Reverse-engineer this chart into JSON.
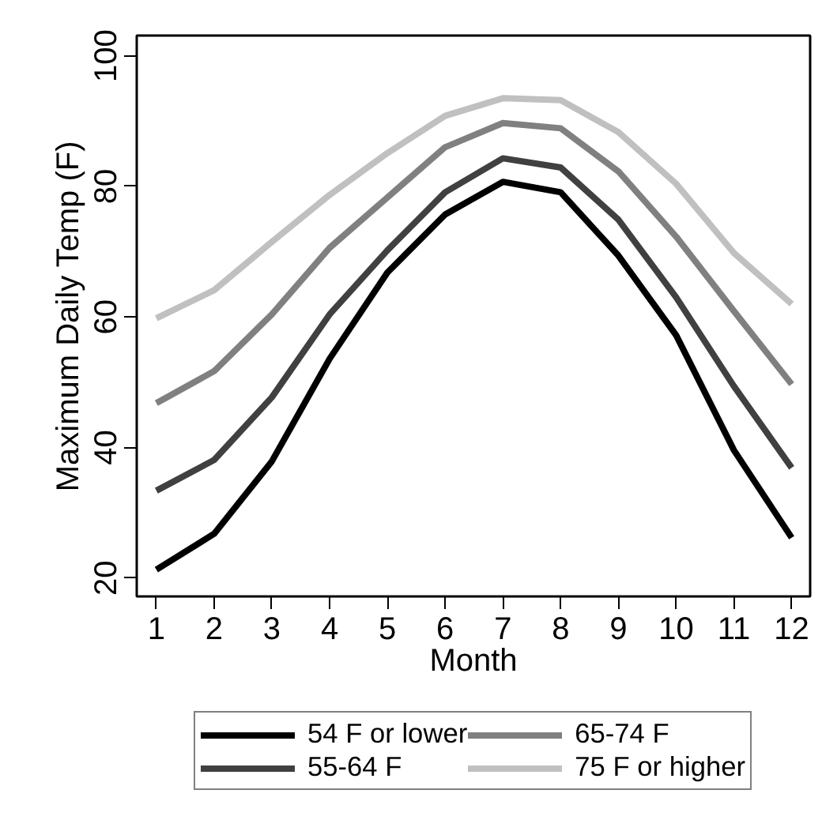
{
  "chart_data": {
    "type": "line",
    "xlabel": "Month",
    "ylabel": "Maximum Daily Temp (F)",
    "x": [
      1,
      2,
      3,
      4,
      5,
      6,
      7,
      8,
      9,
      10,
      11,
      12
    ],
    "xlim": [
      0.66,
      12.32
    ],
    "xticks": [
      1,
      2,
      3,
      4,
      5,
      6,
      7,
      8,
      9,
      10,
      11,
      12
    ],
    "ylim": [
      17.2,
      103.1
    ],
    "yticks": [
      20,
      40,
      60,
      80,
      100
    ],
    "grid": false,
    "legend": "bottom",
    "marker": "none",
    "line_style": "solid",
    "series": [
      {
        "name": "54 F or lower",
        "color": "#000000",
        "values": [
          21.3,
          26.8,
          37.9,
          53.6,
          66.8,
          75.7,
          80.7,
          79.1,
          69.4,
          57.2,
          39.6,
          26.2
        ]
      },
      {
        "name": "55-64 F",
        "color": "#404040",
        "values": [
          33.4,
          38.1,
          47.7,
          60.4,
          70.2,
          79.1,
          84.3,
          82.9,
          74.9,
          63.0,
          49.4,
          36.9
        ]
      },
      {
        "name": "65-74 F",
        "color": "#808080",
        "values": [
          46.8,
          51.7,
          60.4,
          70.6,
          78.3,
          86.0,
          89.7,
          88.9,
          82.3,
          72.3,
          60.9,
          49.7
        ]
      },
      {
        "name": "75 F or higher",
        "color": "#c0c0c0",
        "values": [
          59.8,
          64.1,
          71.5,
          78.7,
          85.1,
          90.8,
          93.5,
          93.2,
          88.3,
          80.4,
          69.8,
          62.0
        ]
      }
    ]
  }
}
